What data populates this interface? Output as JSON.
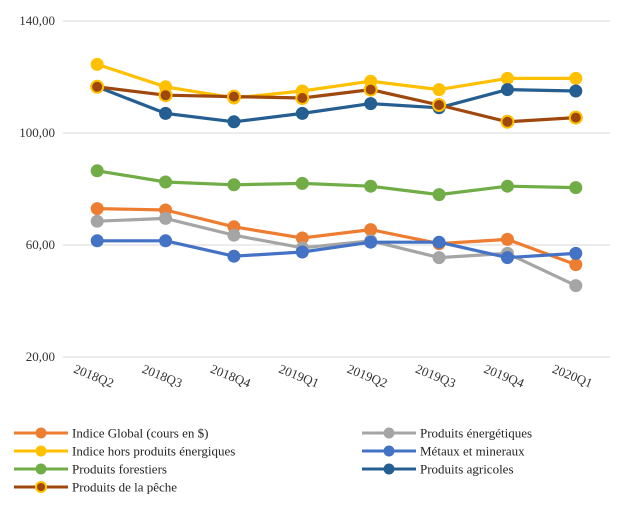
{
  "chart_data": {
    "type": "line",
    "categories": [
      "2018Q2",
      "2018Q3",
      "2018Q4",
      "2019Q1",
      "2019Q2",
      "2019Q3",
      "2019Q4",
      "2020Q1"
    ],
    "y_ticks": [
      "140,00",
      "100,00",
      "60,00",
      "20,00"
    ],
    "ylim": [
      20,
      140
    ],
    "grid": true,
    "legend_position": "bottom",
    "series": [
      {
        "name": "Indice Global (cours en $)",
        "color": "#ED7D31",
        "marker": "circle",
        "values": [
          73.0,
          72.5,
          66.5,
          62.5,
          65.5,
          60.5,
          62.0,
          53.0
        ]
      },
      {
        "name": "Produits énergétiques",
        "color": "#A5A5A5",
        "marker": "circle",
        "values": [
          68.5,
          69.5,
          63.5,
          59.0,
          61.5,
          55.5,
          57.0,
          45.5
        ]
      },
      {
        "name": "Indice hors produits énergiques",
        "color": "#FFC000",
        "marker": "circle",
        "values": [
          124.5,
          116.5,
          112.5,
          115.0,
          118.5,
          115.5,
          119.5,
          119.5
        ]
      },
      {
        "name": "Métaux et mineraux",
        "color": "#4472C4",
        "marker": "circle",
        "values": [
          61.5,
          61.5,
          56.0,
          57.5,
          61.0,
          61.0,
          55.5,
          57.0
        ]
      },
      {
        "name": "Produits forestiers",
        "color": "#70AD47",
        "marker": "circle",
        "values": [
          86.5,
          82.5,
          81.5,
          82.0,
          81.0,
          78.0,
          81.0,
          80.5
        ]
      },
      {
        "name": "Produits agricoles",
        "color": "#255E91",
        "marker": "circle",
        "values": [
          116.5,
          107.0,
          104.0,
          107.0,
          110.5,
          109.0,
          115.5,
          115.0
        ]
      },
      {
        "name": "Produits de la pêche",
        "color": "#9E480E",
        "marker": "circle-outlined",
        "marker_fill": "#9E480E",
        "marker_stroke": "#FFC000",
        "values": [
          116.5,
          113.5,
          113.0,
          112.5,
          115.5,
          110.0,
          104.0,
          105.5
        ]
      }
    ]
  }
}
